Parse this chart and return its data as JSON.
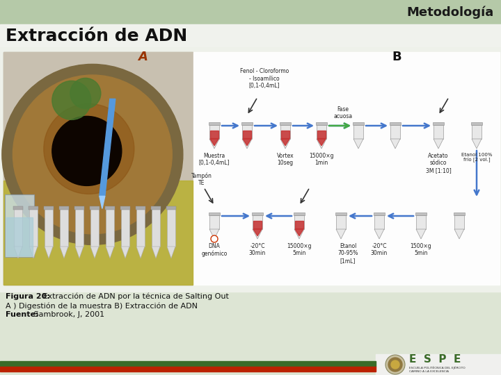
{
  "title_main": "Extracción de ADN",
  "title_header": "Metodología",
  "label_A": "A",
  "label_B": "B",
  "caption_bold": "Figura 20:",
  "caption_text": " Extracción de ADN por la técnica de Salting Out",
  "caption_line2": "A ) Digestión de la muestra B) Extracción de ADN",
  "caption_line3_bold": "Fuente:",
  "caption_line3_normal": " Sambrook, J, 2001",
  "slide_bg": "#dde5d4",
  "header_bg": "#b5c9a8",
  "content_bg": "#eef1ea",
  "white_panel": "#f5f5f0",
  "bar_dark_green": "#3a6b28",
  "bar_red": "#bb2200",
  "espe_green": "#3a6b28",
  "title_fontsize": 18,
  "header_fontsize": 13,
  "caption_fontsize": 8,
  "label_fontsize": 13,
  "tube_red": "#c43030",
  "tube_gray": "#cccccc",
  "arrow_blue": "#4477cc",
  "arrow_green": "#44aa44"
}
